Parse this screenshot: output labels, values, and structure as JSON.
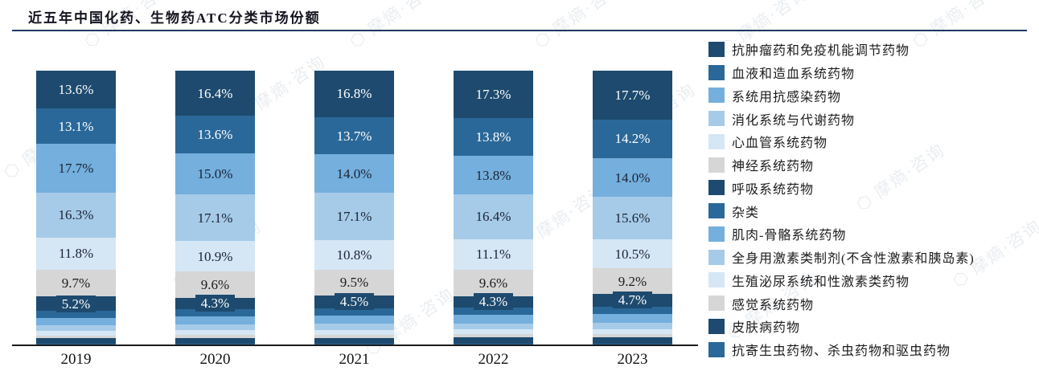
{
  "title": "近五年中国化药、生物药ATC分类市场份额",
  "watermark_text": "摩熵·咨询",
  "colors": {
    "title_rule": "#1f3864",
    "axis": "#1a1a1a",
    "navy": "#1d4a6e",
    "medium_blue": "#2a6899",
    "sky_blue": "#74afdd",
    "light_blue": "#a6cbe8",
    "pale_blue": "#d5e6f5",
    "gray": "#d6d6d6"
  },
  "chart_data": {
    "type": "bar",
    "stacked": true,
    "unit": "%",
    "ylim": [
      0,
      100
    ],
    "grid": false,
    "legend_position": "right",
    "categories": [
      "2019",
      "2020",
      "2021",
      "2022",
      "2023"
    ],
    "series": [
      {
        "name": "抗肿瘤药和免疫机能调节药物",
        "color": "#1d4a6e",
        "labeled": true,
        "label_color": "#ffffff",
        "values": [
          13.6,
          16.4,
          16.8,
          17.3,
          17.7
        ]
      },
      {
        "name": "血液和造血系统药物",
        "color": "#2a6899",
        "labeled": true,
        "label_color": "#ffffff",
        "values": [
          13.1,
          13.6,
          13.7,
          13.8,
          14.2
        ]
      },
      {
        "name": "系统用抗感染药物",
        "color": "#74afdd",
        "labeled": true,
        "label_color": "#1b2335",
        "values": [
          17.7,
          15.0,
          14.0,
          13.8,
          14.0
        ]
      },
      {
        "name": "消化系统与代谢药物",
        "color": "#a6cbe8",
        "labeled": true,
        "label_color": "#1b2335",
        "values": [
          16.3,
          17.1,
          17.1,
          16.4,
          15.6
        ]
      },
      {
        "name": "心血管系统药物",
        "color": "#d5e6f5",
        "labeled": true,
        "label_color": "#1b2335",
        "values": [
          11.8,
          10.9,
          10.8,
          11.1,
          10.5
        ]
      },
      {
        "name": "神经系统药物",
        "color": "#d6d6d6",
        "labeled": true,
        "label_color": "#1b1b1b",
        "values": [
          9.7,
          9.6,
          9.5,
          9.6,
          9.2
        ]
      },
      {
        "name": "呼吸系统药物",
        "color": "#1d4a6e",
        "labeled": true,
        "label_color": "#ffffff",
        "boxed_label": true,
        "values": [
          5.2,
          4.3,
          4.5,
          4.3,
          4.7
        ]
      },
      {
        "name": "杂类",
        "color": "#2a6899",
        "labeled": false,
        "values": [
          2.5,
          2.6,
          2.7,
          2.7,
          2.8
        ]
      },
      {
        "name": "肌肉-骨骼系统药物",
        "color": "#74afdd",
        "labeled": false,
        "values": [
          2.8,
          2.9,
          3.0,
          3.0,
          3.1
        ]
      },
      {
        "name": "全身用激素类制剂(不含性激素和胰岛素)",
        "color": "#a6cbe8",
        "labeled": false,
        "values": [
          2.0,
          2.1,
          2.2,
          2.2,
          2.3
        ]
      },
      {
        "name": "生殖泌尿系统和性激素类药物",
        "color": "#d5e6f5",
        "labeled": false,
        "values": [
          1.7,
          1.8,
          1.8,
          1.8,
          1.9
        ]
      },
      {
        "name": "感觉系统药物",
        "color": "#d6d6d6",
        "labeled": false,
        "values": [
          1.1,
          1.1,
          1.2,
          1.2,
          1.2
        ]
      },
      {
        "name": "皮肤病药物",
        "color": "#1d4a6e",
        "labeled": false,
        "values": [
          1.9,
          2.0,
          2.0,
          2.1,
          2.1
        ]
      },
      {
        "name": "抗寄生虫药物、杀虫药物和驱虫药物",
        "color": "#2a6899",
        "labeled": false,
        "values": [
          0.6,
          0.6,
          0.7,
          0.7,
          0.7
        ]
      }
    ]
  }
}
